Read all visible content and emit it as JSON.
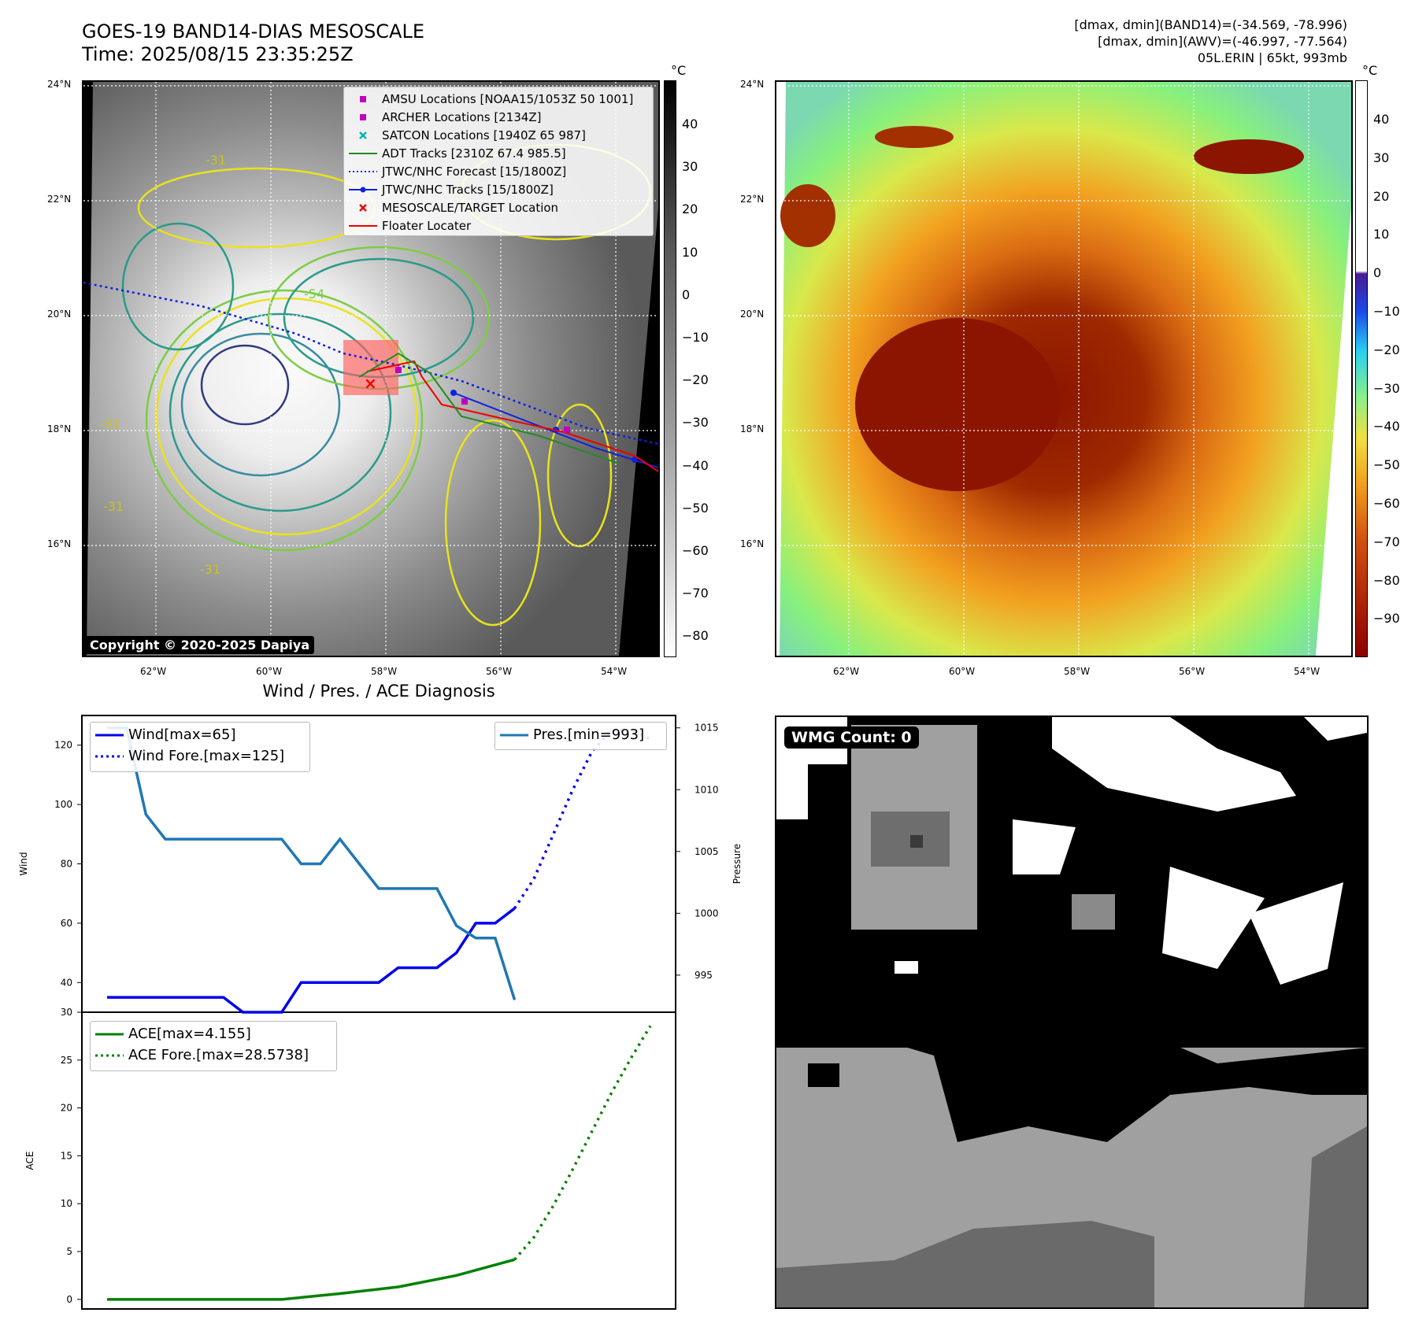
{
  "header": {
    "title": "GOES-19 BAND14-DIAS MESOSCALE",
    "time": "Time: 2025/08/15 23:35:25Z",
    "info_line1": "[dmax, dmin](BAND14)=(-34.569, -78.996)",
    "info_line2": "[dmax, dmin](AWV)=(-46.997, -77.564)",
    "info_line3": "05L.ERIN | 65kt, 993mb"
  },
  "colors": {
    "wind": "#0000ee",
    "pressure": "#1f77b4",
    "ace": "#008000",
    "adt": "#228B22",
    "amsu": "#c000c0",
    "satcon": "#00b3b3",
    "floater": "#ee0000"
  },
  "map_axes": {
    "lon_ticks": [
      "62°W",
      "60°W",
      "58°W",
      "56°W",
      "54°W"
    ],
    "lat_ticks": [
      "24°N",
      "22°N",
      "20°N",
      "18°N",
      "16°N"
    ]
  },
  "ir_panel": {
    "colorbar_unit": "°C",
    "colorbar_ticks": [
      "40",
      "30",
      "20",
      "10",
      "0",
      "−10",
      "−20",
      "−30",
      "−40",
      "−50",
      "−60",
      "−70",
      "−80"
    ],
    "contour_labels": [
      "-31",
      "-54",
      "-31",
      "-31",
      "-31"
    ],
    "copyright": "Copyright © 2020-2025 Dapiya",
    "legend": [
      {
        "label": "AMSU Locations [NOAA15/1053Z 50 1001]",
        "icon": "square-marker"
      },
      {
        "label": "ARCHER Locations [2134Z]",
        "icon": "square-marker"
      },
      {
        "label": "SATCON Locations [1940Z 65 987]",
        "icon": "x-marker"
      },
      {
        "label": "ADT Tracks [2310Z 67.4 985.5]",
        "icon": "solid-line"
      },
      {
        "label": "JTWC/NHC Forecast [15/1800Z]",
        "icon": "dotted-line"
      },
      {
        "label": "JTWC/NHC Tracks [15/1800Z]",
        "icon": "line-dot"
      },
      {
        "label": "MESOSCALE/TARGET Location",
        "icon": "x-marker"
      },
      {
        "label": "Floater Locater",
        "icon": "solid-line"
      }
    ]
  },
  "awv_panel": {
    "colorbar_unit": "°C",
    "colorbar_ticks": [
      "40",
      "30",
      "20",
      "10",
      "0",
      "−10",
      "−20",
      "−30",
      "−40",
      "−50",
      "−60",
      "−70",
      "−80",
      "−90"
    ]
  },
  "wmg_panel": {
    "label": "WMG Count: 0"
  },
  "chart_data": [
    {
      "type": "line",
      "title": "Wind / Pres. / ACE Diagnosis",
      "ylabel": "Wind",
      "ylabel_right": "Pressure",
      "ylim": [
        30,
        130
      ],
      "ylim_right": [
        992,
        1016
      ],
      "yticks": [
        40,
        60,
        80,
        100,
        120
      ],
      "yticks_right": [
        995,
        1000,
        1005,
        1010,
        1015
      ],
      "xlim": [
        0,
        28
      ],
      "series": [
        {
          "name": "Wind[max=65]",
          "axis": "left",
          "style": "solid",
          "x": [
            0,
            1,
            2,
            3,
            4,
            5,
            6,
            7,
            8,
            9,
            10,
            11,
            12,
            13,
            14,
            15,
            16,
            17,
            18,
            19,
            20,
            21
          ],
          "values": [
            35,
            35,
            35,
            35,
            35,
            35,
            35,
            30,
            30,
            30,
            40,
            40,
            40,
            40,
            40,
            45,
            45,
            45,
            50,
            60,
            60,
            65
          ]
        },
        {
          "name": "Wind Fore.[max=125]",
          "axis": "left",
          "style": "dotted",
          "x": [
            21,
            22,
            23,
            24,
            25,
            26,
            27,
            28
          ],
          "values": [
            65,
            75,
            90,
            105,
            118,
            125,
            125,
            122
          ]
        },
        {
          "name": "Pres.[min=993]",
          "axis": "right",
          "style": "solid",
          "x": [
            0,
            1,
            2,
            3,
            4,
            5,
            6,
            7,
            8,
            9,
            10,
            11,
            12,
            13,
            14,
            15,
            16,
            17,
            18,
            19,
            20,
            21
          ],
          "values": [
            1015,
            1015,
            1008,
            1006,
            1006,
            1006,
            1006,
            1006,
            1006,
            1006,
            1004,
            1004,
            1006,
            1004,
            1002,
            1002,
            1002,
            1002,
            999,
            998,
            998,
            993
          ]
        }
      ]
    },
    {
      "type": "line",
      "ylabel": "ACE",
      "ylim": [
        -1,
        30
      ],
      "yticks": [
        0,
        5,
        10,
        15,
        20,
        25,
        30
      ],
      "xlim": [
        0,
        28
      ],
      "series": [
        {
          "name": "ACE[max=4.155]",
          "style": "solid",
          "x": [
            0,
            3,
            6,
            9,
            12,
            15,
            18,
            21
          ],
          "values": [
            0,
            0,
            0,
            0,
            0.6,
            1.3,
            2.5,
            4.155
          ]
        },
        {
          "name": "ACE Fore.[max=28.5738]",
          "style": "dotted",
          "x": [
            21,
            22,
            23,
            24,
            25,
            26,
            27,
            28
          ],
          "values": [
            4.155,
            6.5,
            9.8,
            13.6,
            17.6,
            21.6,
            25.2,
            28.5738
          ]
        }
      ]
    }
  ]
}
